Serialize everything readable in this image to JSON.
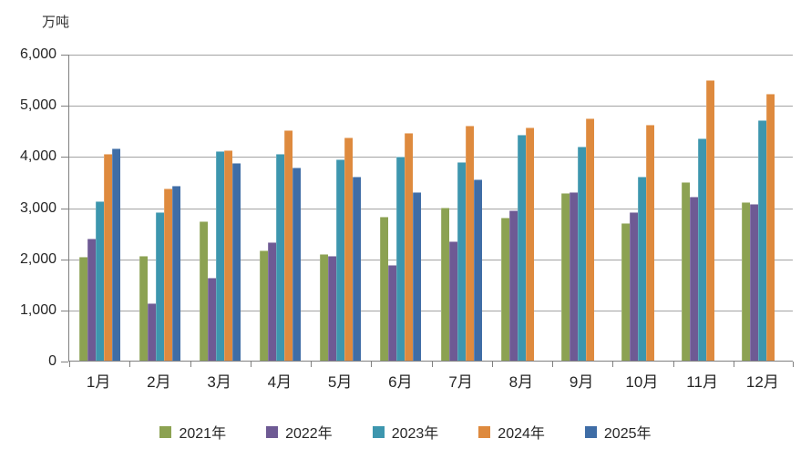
{
  "chart_data": {
    "type": "bar",
    "title": "",
    "unit_label": "万吨",
    "xlabel": "",
    "ylabel": "万吨",
    "ylim": [
      0,
      6000
    ],
    "ytick_step": 1000,
    "yticks": [
      "6,000",
      "5,000",
      "4,000",
      "3,000",
      "2,000",
      "1,000",
      "0"
    ],
    "grid": true,
    "legend_position": "bottom",
    "categories": [
      "1月",
      "2月",
      "3月",
      "4月",
      "5月",
      "6月",
      "7月",
      "8月",
      "9月",
      "10月",
      "11月",
      "12月"
    ],
    "series": [
      {
        "name": "2021年",
        "color": "#8CA252",
        "values": [
          2030,
          2060,
          2730,
          2160,
          2090,
          2830,
          3000,
          2800,
          3290,
          2690,
          3500,
          3100
        ]
      },
      {
        "name": "2022年",
        "color": "#6E5A94",
        "values": [
          2400,
          1120,
          1620,
          2330,
          2050,
          1880,
          2340,
          2950,
          3310,
          2910,
          3220,
          3080
        ]
      },
      {
        "name": "2023年",
        "color": "#3D96AE",
        "values": [
          3130,
          2910,
          4100,
          4060,
          3950,
          4000,
          3900,
          4430,
          4200,
          3600,
          4350,
          4720
        ]
      },
      {
        "name": "2024年",
        "color": "#DE8A3E",
        "values": [
          4060,
          3370,
          4130,
          4520,
          4370,
          4460,
          4610,
          4580,
          4750,
          4630,
          5500,
          5240
        ]
      },
      {
        "name": "2025年",
        "color": "#3F6DA6",
        "values": [
          4160,
          3430,
          3870,
          3780,
          3600,
          3310,
          3560,
          null,
          null,
          null,
          null,
          null
        ]
      }
    ]
  }
}
